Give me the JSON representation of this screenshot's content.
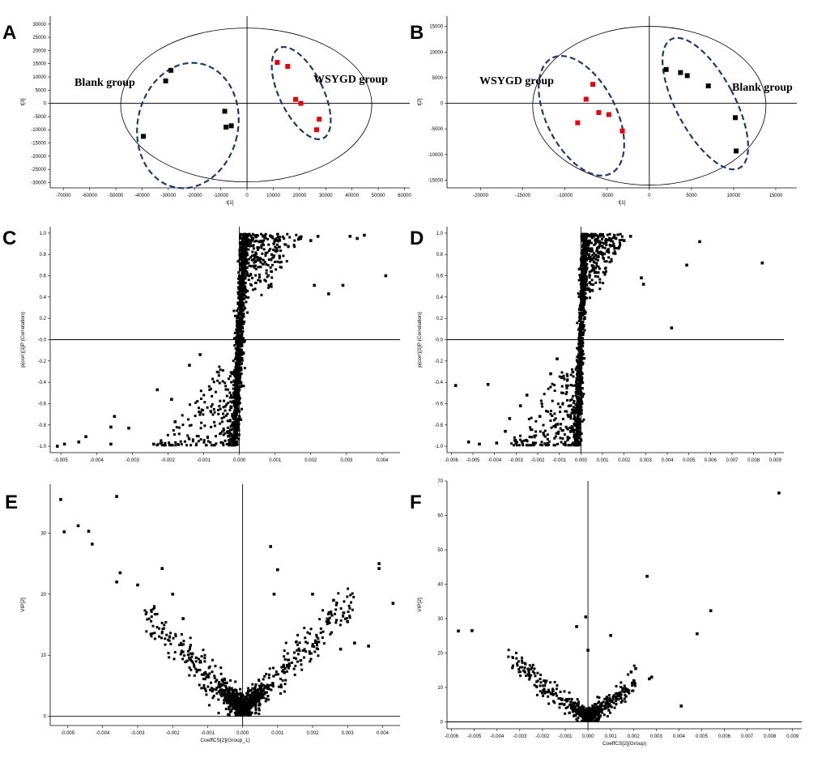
{
  "chart_data": [
    {
      "panel": "A",
      "type": "scatter",
      "xlabel": "t[1]",
      "ylabel": "t[3]",
      "xlim": [
        -75000,
        62000
      ],
      "ylim": [
        -32000,
        33000
      ],
      "xticks": [
        -70000,
        -60000,
        -50000,
        -40000,
        -30000,
        -20000,
        -10000,
        0,
        10000,
        20000,
        30000,
        40000,
        50000,
        60000
      ],
      "yticks": [
        30000,
        25000,
        20000,
        15000,
        10000,
        5000,
        0,
        -5000,
        -10000,
        -15000,
        -20000,
        -25000,
        -30000
      ],
      "annotations": [
        "Blank group",
        "WSYGD group"
      ],
      "series": [
        {
          "name": "Blank group",
          "color": "#000000",
          "points": [
            [
              -31000,
              8500
            ],
            [
              -29000,
              12500
            ],
            [
              -39500,
              -12500
            ],
            [
              -8500,
              -3000
            ],
            [
              -8000,
              -9000
            ],
            [
              -6000,
              -8500
            ]
          ]
        },
        {
          "name": "WSYGD group",
          "color": "#e8000b",
          "points": [
            [
              11500,
              15500
            ],
            [
              15500,
              14000
            ],
            [
              18500,
              1500
            ],
            [
              20500,
              0
            ],
            [
              26500,
              -10000
            ],
            [
              27500,
              -6000
            ]
          ]
        }
      ]
    },
    {
      "panel": "B",
      "type": "scatter",
      "xlabel": "t[1]",
      "ylabel": "t[2]",
      "xlim": [
        -24000,
        17500
      ],
      "ylim": [
        -16500,
        17000
      ],
      "xticks": [
        -20000,
        -15000,
        -10000,
        -5000,
        0,
        5000,
        10000,
        15000
      ],
      "yticks": [
        15000,
        10000,
        5000,
        0,
        -5000,
        -10000,
        -15000
      ],
      "annotations": [
        "WSYGD group",
        "Blank group"
      ],
      "series": [
        {
          "name": "WSYGD group",
          "color": "#e8000b",
          "points": [
            [
              -8500,
              -3800
            ],
            [
              -7500,
              800
            ],
            [
              -6700,
              3700
            ],
            [
              -6000,
              -1800
            ],
            [
              -4800,
              -2200
            ],
            [
              -3200,
              -5400
            ]
          ]
        },
        {
          "name": "Blank group",
          "color": "#000000",
          "points": [
            [
              2000,
              6600
            ],
            [
              3700,
              6000
            ],
            [
              4500,
              5400
            ],
            [
              7000,
              3400
            ],
            [
              10200,
              -2800
            ],
            [
              10300,
              -9300
            ]
          ]
        }
      ]
    },
    {
      "panel": "C",
      "type": "scatter",
      "xlabel": "",
      "ylabel": "p(corr)[1]P (Correlation)",
      "xlim": [
        -0.0053,
        0.0045
      ],
      "ylim": [
        -1.06,
        1.06
      ],
      "xticks": [
        -0.005,
        -0.004,
        -0.003,
        -0.002,
        -0.001,
        0.0,
        0.001,
        0.002,
        0.003,
        0.004
      ],
      "yticks": [
        1.0,
        0.8,
        0.6,
        0.4,
        0.2,
        -0.0,
        -0.2,
        -0.4,
        -0.6,
        -0.8,
        -1.0
      ],
      "xtick_labels": [
        "-0.005",
        "-0.004",
        "-0.003",
        "-0.002",
        "-0.001",
        "0.000",
        "0.001",
        "0.002",
        "0.003",
        "0.004"
      ],
      "ytick_labels": [
        "1.0",
        "0.8",
        "0.6",
        "0.4",
        "0.2",
        "-0.0",
        "-0.2",
        "-0.4",
        "-0.6",
        "-0.8",
        "-1.0"
      ],
      "outliers": [
        [
          0.0041,
          0.6
        ],
        [
          0.0035,
          0.98
        ],
        [
          0.0033,
          0.95
        ],
        [
          0.0031,
          0.97
        ],
        [
          0.0029,
          0.51
        ],
        [
          0.0025,
          0.43
        ],
        [
          0.0021,
          0.51
        ],
        [
          0.0022,
          0.97
        ],
        [
          0.002,
          0.93
        ],
        [
          -0.0051,
          -1.0
        ],
        [
          -0.0049,
          -0.98
        ],
        [
          -0.0045,
          -0.96
        ],
        [
          -0.0043,
          -0.91
        ],
        [
          -0.0036,
          -0.98
        ],
        [
          -0.0036,
          -0.82
        ],
        [
          -0.0035,
          -0.72
        ],
        [
          -0.0031,
          -0.83
        ],
        [
          -0.0024,
          -0.98
        ],
        [
          -0.0023,
          -0.47
        ],
        [
          -0.0022,
          -0.97
        ],
        [
          -0.0018,
          -0.77
        ],
        [
          -0.0019,
          -0.56
        ],
        [
          -0.0014,
          -0.24
        ],
        [
          -0.0011,
          -0.14
        ]
      ],
      "cloud": {
        "spread_x": 6e-05,
        "slope_x_per_corr": 0.00013,
        "upper_arm_max_x": 0.0017,
        "lower_arm_min_x": -0.0022,
        "count": 1400
      }
    },
    {
      "panel": "D",
      "type": "scatter",
      "xlabel": "",
      "ylabel": "p(corr)[1]P (Correlation)",
      "xlim": [
        -0.0062,
        0.0094
      ],
      "ylim": [
        -1.06,
        1.06
      ],
      "xticks": [
        -0.006,
        -0.005,
        -0.004,
        -0.003,
        -0.002,
        -0.001,
        0.0,
        0.001,
        0.002,
        0.003,
        0.004,
        0.005,
        0.006,
        0.007,
        0.008,
        0.009
      ],
      "yticks": [
        1.0,
        0.8,
        0.6,
        0.4,
        0.2,
        -0.0,
        -0.2,
        -0.4,
        -0.6,
        -0.8,
        -1.0
      ],
      "xtick_labels": [
        "-0.006",
        "-0.005",
        "-0.004",
        "-0.003",
        "-0.002",
        "-0.001",
        "0.000",
        "0.001",
        "0.002",
        "0.003",
        "0.004",
        "0.005",
        "0.006",
        "0.007",
        "0.008",
        "0.009"
      ],
      "ytick_labels": [
        "1.0",
        "0.8",
        "0.6",
        "0.4",
        "0.2",
        "-0.0",
        "-0.2",
        "-0.4",
        "-0.6",
        "-0.8",
        "-1.0"
      ],
      "outliers": [
        [
          0.0084,
          0.72
        ],
        [
          0.0055,
          0.92
        ],
        [
          0.0049,
          0.7
        ],
        [
          0.0042,
          0.11
        ],
        [
          0.0028,
          0.58
        ],
        [
          0.0029,
          0.52
        ],
        [
          0.0023,
          0.97
        ],
        [
          0.002,
          0.93
        ],
        [
          -0.0058,
          -0.43
        ],
        [
          -0.0052,
          -0.96
        ],
        [
          -0.0047,
          -0.98
        ],
        [
          -0.0043,
          -0.42
        ],
        [
          -0.0039,
          -0.97
        ],
        [
          -0.0035,
          -0.86
        ],
        [
          -0.0033,
          -0.74
        ],
        [
          -0.003,
          -0.97
        ],
        [
          -0.0028,
          -0.62
        ],
        [
          -0.0025,
          -0.52
        ],
        [
          -0.0022,
          -0.97
        ],
        [
          -0.0019,
          -0.72
        ],
        [
          -0.0014,
          -0.32
        ],
        [
          -0.0011,
          -0.18
        ]
      ],
      "cloud": {
        "spread_x": 7e-05,
        "slope_x_per_corr": 0.00016,
        "upper_arm_max_x": 0.0019,
        "lower_arm_min_x": -0.0032,
        "count": 1400
      }
    },
    {
      "panel": "E",
      "type": "scatter",
      "xlabel": "CoeffCS[2](Group_1)",
      "ylabel": "VIP[2]",
      "xlim": [
        -0.0055,
        0.0045
      ],
      "ylim": [
        -1.5,
        38
      ],
      "xticks": [
        -0.005,
        -0.004,
        -0.003,
        -0.002,
        -0.001,
        0.0,
        0.001,
        0.002,
        0.003,
        0.004
      ],
      "yticks": [
        30,
        20,
        10,
        0
      ],
      "xtick_labels": [
        "-0.005",
        "-0.004",
        "-0.003",
        "-0.002",
        "-0.001",
        "0.000",
        "0.001",
        "0.002",
        "0.003",
        "0.004"
      ],
      "ytick_labels": [
        "30",
        "20",
        "10",
        "0"
      ],
      "outliers": [
        [
          -0.0052,
          35.5
        ],
        [
          -0.0051,
          30.2
        ],
        [
          -0.0047,
          31.2
        ],
        [
          -0.0044,
          30.3
        ],
        [
          -0.0043,
          28.2
        ],
        [
          -0.0036,
          36
        ],
        [
          -0.0036,
          22
        ],
        [
          -0.0035,
          23.5
        ],
        [
          -0.003,
          21.5
        ],
        [
          -0.0023,
          24.2
        ],
        [
          -0.002,
          20
        ],
        [
          -0.0017,
          16
        ],
        [
          0.0008,
          27.8
        ],
        [
          0.001,
          24
        ],
        [
          0.0009,
          20
        ],
        [
          0.002,
          20
        ],
        [
          0.0026,
          19
        ],
        [
          0.0032,
          12
        ],
        [
          0.0039,
          25
        ],
        [
          0.0039,
          24.2
        ],
        [
          0.0043,
          18.5
        ],
        [
          0.0036,
          11.5
        ],
        [
          0.0028,
          11
        ],
        [
          0.003,
          15.5
        ]
      ],
      "cloud": {
        "slope_vip_per_unit": 5800,
        "count": 1300
      }
    },
    {
      "panel": "F",
      "type": "scatter",
      "xlabel": "CoeffCS[2](Group)",
      "ylabel": "VIP[2]",
      "xlim": [
        -0.0062,
        0.0094
      ],
      "ylim": [
        -2,
        70
      ],
      "xticks": [
        -0.006,
        -0.005,
        -0.004,
        -0.003,
        -0.002,
        -0.001,
        0.0,
        0.001,
        0.002,
        0.003,
        0.004,
        0.005,
        0.006,
        0.007,
        0.008,
        0.009
      ],
      "yticks": [
        70,
        60,
        50,
        40,
        30,
        20,
        10,
        0
      ],
      "xtick_labels": [
        "-0.006",
        "-0.005",
        "-0.004",
        "-0.003",
        "-0.002",
        "-0.001",
        "0.000",
        "0.001",
        "0.002",
        "0.003",
        "0.004",
        "0.005",
        "0.006",
        "0.007",
        "0.008",
        "0.009"
      ],
      "ytick_labels": [
        "70",
        "60",
        "50",
        "40",
        "30",
        "20",
        "10",
        "0"
      ],
      "outliers": [
        [
          0.0084,
          66.5
        ],
        [
          0.0026,
          42.3
        ],
        [
          0.0054,
          32.3
        ],
        [
          0.0048,
          25.6
        ],
        [
          0.0041,
          4.6
        ],
        [
          -0.0057,
          26.4
        ],
        [
          -0.0051,
          26.5
        ],
        [
          -0.0005,
          27.7
        ],
        [
          -0.0001,
          30.5
        ],
        [
          0.0,
          20.8
        ],
        [
          0.001,
          25.1
        ],
        [
          0.0027,
          12.5
        ],
        [
          0.0028,
          13
        ],
        [
          0.0021,
          15.5
        ],
        [
          0.0019,
          14.5
        ]
      ],
      "cloud": {
        "slope_vip_per_unit": 5300,
        "count": 900
      }
    }
  ]
}
